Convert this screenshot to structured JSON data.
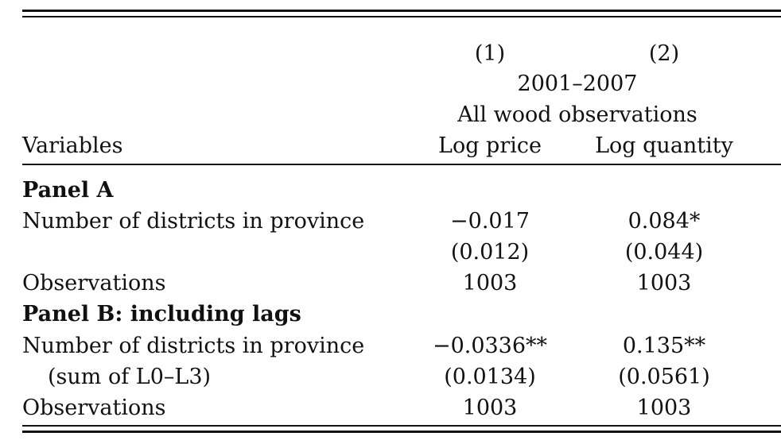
{
  "table": {
    "header": {
      "col1_num": "(1)",
      "col2_num": "(2)",
      "period": "2001–2007",
      "sample": "All wood observations",
      "row_label": "Variables",
      "col1_name": "Log price",
      "col2_name": "Log quantity"
    },
    "panel_a": {
      "title": "Panel A",
      "row1": {
        "label": "Number of districts in province",
        "c1": "−0.017",
        "c2": "0.084*"
      },
      "row1_se": {
        "c1": "(0.012)",
        "c2": "(0.044)"
      },
      "obs": {
        "label": "Observations",
        "c1": "1003",
        "c2": "1003"
      }
    },
    "panel_b": {
      "title": "Panel B: including lags",
      "row1": {
        "label": "Number of districts in province",
        "c1": "−0.0336**",
        "c2": "0.135**"
      },
      "row1_se": {
        "label": "(sum of L0–L3)",
        "c1": "(0.0134)",
        "c2": "(0.0561)"
      },
      "obs": {
        "label": "Observations",
        "c1": "1003",
        "c2": "1003"
      }
    }
  }
}
